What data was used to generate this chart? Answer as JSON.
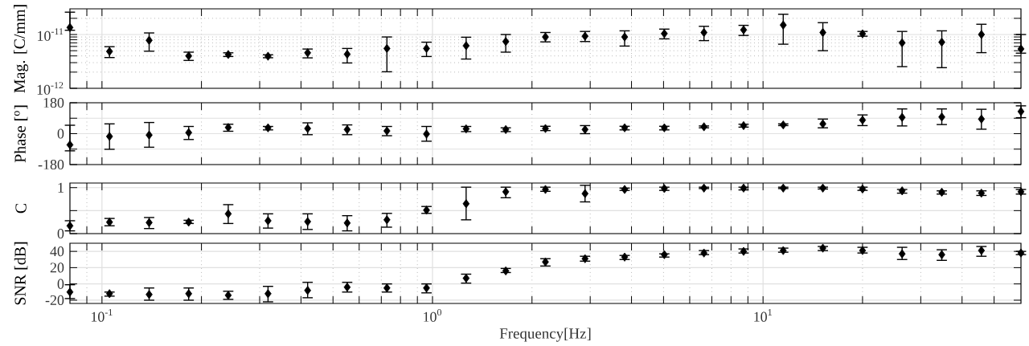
{
  "chart_data": [
    {
      "type": "scatter",
      "ylabel": "Mag. [C/mm]",
      "color": "#000000",
      "marker": "diamond",
      "log": "xy",
      "grid": true,
      "tick_labels": "y",
      "x": [
        0.08,
        0.1054,
        0.1389,
        0.183,
        0.241,
        0.318,
        0.419,
        0.552,
        0.728,
        0.959,
        1.264,
        1.666,
        2.196,
        2.894,
        3.814,
        5.027,
        6.626,
        8.733,
        11.51,
        15.17,
        20.0,
        26.35,
        34.74,
        45.78,
        60.3
      ],
      "values": [
        1.35e-11,
        4.85e-12,
        7.8e-12,
        4e-12,
        4.25e-12,
        3.95e-12,
        4.57e-12,
        4.3e-12,
        5.5e-12,
        5.5e-12,
        6.2e-12,
        7.4e-12,
        9e-12,
        9.3e-12,
        9e-12,
        1.04e-11,
        1.09e-11,
        1.22e-11,
        1.5e-11,
        1.09e-11,
        1.03e-11,
        7e-12,
        7.2e-12,
        1e-11,
        5.4e-12
      ],
      "errors": [
        [
          1.2e-11,
          2.6e-11
        ],
        [
          3.73e-12,
          5.94e-12
        ],
        [
          4.9e-12,
          1.07e-11
        ],
        [
          3.3e-12,
          4.7e-12
        ],
        [
          3.9e-12,
          4.57e-12
        ],
        [
          3.7e-12,
          4.2e-12
        ],
        [
          3.68e-12,
          5.37e-12
        ],
        [
          2.96e-12,
          5.5e-12
        ],
        [
          2.03e-12,
          9e-12
        ],
        [
          3.9e-12,
          7.2e-12
        ],
        [
          3.5e-12,
          8.9e-12
        ],
        [
          4.7e-12,
          1e-11
        ],
        [
          7.3e-12,
          1.09e-11
        ],
        [
          7.4e-12,
          1.14e-11
        ],
        [
          6.1e-12,
          1.17e-11
        ],
        [
          8.3e-12,
          1.26e-11
        ],
        [
          7.7e-12,
          1.42e-11
        ],
        [
          9.6e-12,
          1.48e-11
        ],
        [
          6.6e-12,
          2.38e-11
        ],
        [
          5e-12,
          1.66e-11
        ],
        [
          9.3e-12,
          1.14e-11
        ],
        [
          2.53e-12,
          1.14e-11
        ],
        [
          2.42e-12,
          1.17e-11
        ],
        [
          4.6e-12,
          1.55e-11
        ],
        [
          4.5e-12,
          1e-11
        ]
      ],
      "xlim": [
        0.08,
        60.3
      ],
      "ylim": [
        1e-12,
        3e-11
      ],
      "xticks": [
        {
          "value": 0.09,
          "label": null
        },
        0.1,
        {
          "value": 0.2,
          "label": null
        },
        {
          "value": 0.3,
          "label": null
        },
        {
          "value": 0.4,
          "label": null
        },
        {
          "value": 0.5,
          "label": null
        },
        {
          "value": 0.6,
          "label": null
        },
        {
          "value": 0.7,
          "label": null
        },
        {
          "value": 0.8,
          "label": null
        },
        {
          "value": 0.9,
          "label": null
        },
        1,
        {
          "value": 2,
          "label": null
        },
        {
          "value": 3,
          "label": null
        },
        {
          "value": 4,
          "label": null
        },
        {
          "value": 5,
          "label": null
        },
        {
          "value": 6,
          "label": null
        },
        {
          "value": 7,
          "label": null
        },
        {
          "value": 8,
          "label": null
        },
        {
          "value": 9,
          "label": null
        },
        10,
        {
          "value": 20,
          "label": null
        },
        {
          "value": 30,
          "label": null
        },
        {
          "value": 40,
          "label": null
        },
        {
          "value": 50,
          "label": null
        }
      ],
      "yticks": [
        {
          "value": 1e-12,
          "label": "10$^{-12}$"
        },
        {
          "value": 2e-12,
          "label": null
        },
        {
          "value": 3e-12,
          "label": null
        },
        {
          "value": 4e-12,
          "label": null
        },
        {
          "value": 5e-12,
          "label": null
        },
        {
          "value": 6e-12,
          "label": null
        },
        {
          "value": 7e-12,
          "label": null
        },
        {
          "value": 8e-12,
          "label": null
        },
        {
          "value": 9e-12,
          "label": null
        },
        {
          "value": 1e-11,
          "label": "10$^{-11}$"
        },
        {
          "value": 2e-11,
          "label": null
        }
      ]
    },
    {
      "type": "scatter",
      "ylabel": "Phase [$^{o}$]",
      "color": "#000000",
      "marker": "diamond",
      "log": "x",
      "grid": true,
      "tick_labels": "y",
      "x": [
        0.08,
        0.1054,
        0.1389,
        0.183,
        0.241,
        0.318,
        0.419,
        0.552,
        0.728,
        0.959,
        1.264,
        1.666,
        2.196,
        2.894,
        3.814,
        5.027,
        6.626,
        8.733,
        11.51,
        15.17,
        20.0,
        26.35,
        34.74,
        45.78,
        60.3
      ],
      "values": [
        -65,
        -16,
        -8,
        6,
        36,
        34,
        30,
        24,
        16,
        -2,
        28,
        24,
        30,
        24,
        34,
        34,
        40,
        47,
        51,
        57,
        79,
        95,
        97,
        85,
        129
      ],
      "errors": [
        [
          -100,
          49
        ],
        [
          -91,
          57
        ],
        [
          -79,
          65
        ],
        [
          -34,
          42
        ],
        [
          14,
          55
        ],
        [
          22,
          42
        ],
        [
          -6,
          63
        ],
        [
          -6,
          51
        ],
        [
          -12,
          42
        ],
        [
          -44,
          42
        ],
        [
          12,
          42
        ],
        [
          12,
          34
        ],
        [
          18,
          43
        ],
        [
          0,
          47
        ],
        [
          22,
          43
        ],
        [
          22,
          43
        ],
        [
          34,
          45
        ],
        [
          38,
          55
        ],
        [
          47,
          57
        ],
        [
          34,
          85
        ],
        [
          47,
          109
        ],
        [
          45,
          144
        ],
        [
          53,
          144
        ],
        [
          26,
          142
        ],
        [
          93,
          162
        ]
      ],
      "xlim": [
        0.08,
        60.3
      ],
      "ylim": [
        -180,
        180
      ],
      "xticks": [
        {
          "value": 0.09,
          "label": null
        },
        0.1,
        {
          "value": 0.2,
          "label": null
        },
        {
          "value": 0.3,
          "label": null
        },
        {
          "value": 0.4,
          "label": null
        },
        {
          "value": 0.5,
          "label": null
        },
        {
          "value": 0.6,
          "label": null
        },
        {
          "value": 0.7,
          "label": null
        },
        {
          "value": 0.8,
          "label": null
        },
        {
          "value": 0.9,
          "label": null
        },
        1,
        {
          "value": 2,
          "label": null
        },
        {
          "value": 3,
          "label": null
        },
        {
          "value": 4,
          "label": null
        },
        {
          "value": 5,
          "label": null
        },
        {
          "value": 6,
          "label": null
        },
        {
          "value": 7,
          "label": null
        },
        {
          "value": 8,
          "label": null
        },
        {
          "value": 9,
          "label": null
        },
        10,
        {
          "value": 20,
          "label": null
        },
        {
          "value": 30,
          "label": null
        },
        {
          "value": 40,
          "label": null
        },
        {
          "value": 50,
          "label": null
        }
      ],
      "yticks": [
        -180,
        {
          "value": -90,
          "label": null
        },
        0,
        {
          "value": 90,
          "label": null
        },
        180
      ]
    },
    {
      "type": "scatter",
      "ylabel": "C",
      "color": "#000000",
      "marker": "diamond",
      "log": "x",
      "grid": true,
      "tick_labels": "y",
      "x": [
        0.08,
        0.1054,
        0.1389,
        0.183,
        0.241,
        0.318,
        0.419,
        0.552,
        0.728,
        0.959,
        1.264,
        1.666,
        2.196,
        2.894,
        3.814,
        5.027,
        6.626,
        8.733,
        11.51,
        15.17,
        20.0,
        26.35,
        34.74,
        45.78,
        60.3
      ],
      "values": [
        0.17,
        0.25,
        0.24,
        0.25,
        0.43,
        0.28,
        0.26,
        0.23,
        0.3,
        0.51,
        0.65,
        0.91,
        0.96,
        0.87,
        0.96,
        0.98,
        0.99,
        0.99,
        0.99,
        0.99,
        0.97,
        0.93,
        0.9,
        0.88,
        0.91
      ],
      "errors": [
        [
          0.06,
          0.28
        ],
        [
          0.17,
          0.33
        ],
        [
          0.11,
          0.35
        ],
        [
          0.22,
          0.29
        ],
        [
          0.22,
          0.63
        ],
        [
          0.12,
          0.43
        ],
        [
          0.09,
          0.43
        ],
        [
          0.06,
          0.39
        ],
        [
          0.14,
          0.44
        ],
        [
          0.44,
          0.59
        ],
        [
          0.3,
          1.01
        ],
        [
          0.78,
          1.01
        ],
        [
          0.92,
          1.01
        ],
        [
          0.69,
          1.05
        ],
        [
          0.94,
          0.99
        ],
        [
          0.94,
          1.01
        ],
        [
          0.98,
          1.01
        ],
        [
          0.95,
          1.01
        ],
        [
          0.98,
          1.01
        ],
        [
          0.97,
          1.01
        ],
        [
          0.94,
          1.01
        ],
        [
          0.88,
          0.96
        ],
        [
          0.86,
          0.93
        ],
        [
          0.83,
          0.93
        ],
        [
          0.86,
          0.96
        ]
      ],
      "xlim": [
        0.08,
        60.3
      ],
      "ylim": [
        0,
        1.1
      ],
      "xticks": [
        {
          "value": 0.09,
          "label": null
        },
        0.1,
        {
          "value": 0.2,
          "label": null
        },
        {
          "value": 0.3,
          "label": null
        },
        {
          "value": 0.4,
          "label": null
        },
        {
          "value": 0.5,
          "label": null
        },
        {
          "value": 0.6,
          "label": null
        },
        {
          "value": 0.7,
          "label": null
        },
        {
          "value": 0.8,
          "label": null
        },
        {
          "value": 0.9,
          "label": null
        },
        1,
        {
          "value": 2,
          "label": null
        },
        {
          "value": 3,
          "label": null
        },
        {
          "value": 4,
          "label": null
        },
        {
          "value": 5,
          "label": null
        },
        {
          "value": 6,
          "label": null
        },
        {
          "value": 7,
          "label": null
        },
        {
          "value": 8,
          "label": null
        },
        {
          "value": 9,
          "label": null
        },
        10,
        {
          "value": 20,
          "label": null
        },
        {
          "value": 30,
          "label": null
        },
        {
          "value": 40,
          "label": null
        },
        {
          "value": 50,
          "label": null
        }
      ],
      "yticks": [
        0,
        {
          "value": 0.5,
          "label": null
        },
        1
      ]
    },
    {
      "type": "scatter",
      "xlabel": "Frequency[Hz]",
      "ylabel": "SNR [dB]",
      "color": "#000000",
      "marker": "diamond",
      "log": "x",
      "grid": true,
      "x": [
        0.08,
        0.1054,
        0.1389,
        0.183,
        0.241,
        0.318,
        0.419,
        0.552,
        0.728,
        0.959,
        1.264,
        1.666,
        2.196,
        2.894,
        3.814,
        5.027,
        6.626,
        8.733,
        11.51,
        15.17,
        20.0,
        26.35,
        34.74,
        45.78,
        60.3
      ],
      "values": [
        -10,
        -12,
        -13,
        -12,
        -14,
        -12,
        -8,
        -4,
        -5,
        -5,
        7,
        16,
        27,
        31,
        33,
        36,
        38,
        40,
        41,
        44,
        41,
        37,
        36,
        41,
        38
      ],
      "errors": [
        [
          -18,
          -1
        ],
        [
          -15,
          -10
        ],
        [
          -20,
          -5
        ],
        [
          -20,
          -5
        ],
        [
          -19,
          -9
        ],
        [
          -22,
          -3
        ],
        [
          -17,
          2
        ],
        [
          -10,
          2
        ],
        [
          -10,
          0
        ],
        [
          -11,
          0
        ],
        [
          1,
          12
        ],
        [
          14,
          19
        ],
        [
          22,
          31
        ],
        [
          28,
          34
        ],
        [
          30,
          35
        ],
        [
          33,
          37
        ],
        [
          36,
          41
        ],
        [
          38,
          43
        ],
        [
          39,
          44
        ],
        [
          41,
          46
        ],
        [
          38,
          45
        ],
        [
          30,
          45
        ],
        [
          29,
          42
        ],
        [
          34,
          46
        ],
        [
          36,
          40
        ]
      ],
      "xlim": [
        0.08,
        60.3
      ],
      "ylim": [
        -24,
        50
      ],
      "xticks": [
        {
          "value": 0.09,
          "label": null
        },
        {
          "value": 0.1,
          "label": "10$^{-1}$"
        },
        {
          "value": 0.2,
          "label": null
        },
        {
          "value": 0.3,
          "label": null
        },
        {
          "value": 0.4,
          "label": null
        },
        {
          "value": 0.5,
          "label": null
        },
        {
          "value": 0.6,
          "label": null
        },
        {
          "value": 0.7,
          "label": null
        },
        {
          "value": 0.8,
          "label": null
        },
        {
          "value": 0.9,
          "label": null
        },
        {
          "value": 1,
          "label": "10$^{0}$"
        },
        {
          "value": 2,
          "label": null
        },
        {
          "value": 3,
          "label": null
        },
        {
          "value": 4,
          "label": null
        },
        {
          "value": 5,
          "label": null
        },
        {
          "value": 6,
          "label": null
        },
        {
          "value": 7,
          "label": null
        },
        {
          "value": 8,
          "label": null
        },
        {
          "value": 9,
          "label": null
        },
        {
          "value": 10,
          "label": "10$^{1}$"
        },
        {
          "value": 20,
          "label": null
        },
        {
          "value": 30,
          "label": null
        },
        {
          "value": 40,
          "label": null
        },
        {
          "value": 50,
          "label": null
        }
      ],
      "yticks": [
        -20,
        0,
        20,
        40
      ]
    }
  ]
}
